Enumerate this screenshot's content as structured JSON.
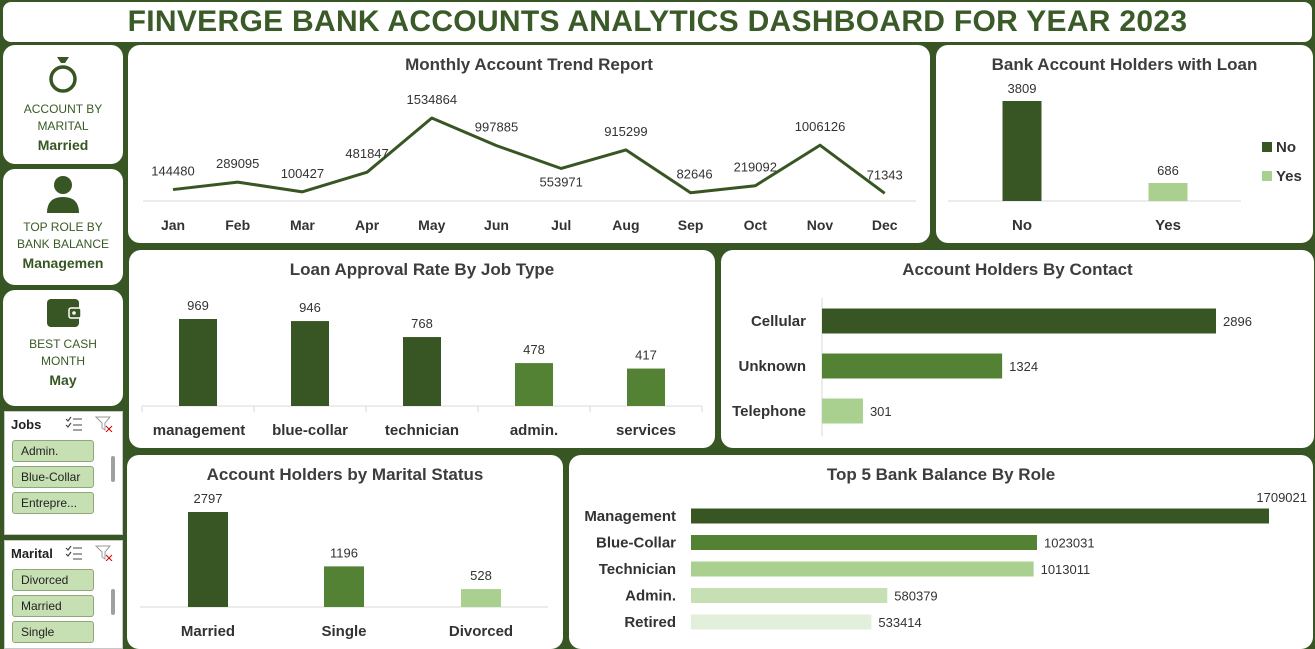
{
  "header": {
    "title": "FINVERGE BANK ACCOUNTS ANALYTICS DASHBOARD FOR YEAR 2023"
  },
  "kpis": [
    {
      "label": "ACCOUNT BY MARITAL",
      "value": "Married",
      "icon": "ring-icon"
    },
    {
      "label": "TOP ROLE BY BANK BALANCE",
      "value": "Managemen",
      "icon": "person-icon"
    },
    {
      "label": "BEST CASH MONTH",
      "value": "May",
      "icon": "wallet-icon"
    }
  ],
  "slicers": {
    "jobs": {
      "title": "Jobs",
      "items": [
        "Admin.",
        "Blue-Collar",
        "Entrepre..."
      ]
    },
    "marital": {
      "title": "Marital",
      "items": [
        "Divorced",
        "Married",
        "Single"
      ]
    }
  },
  "colors": {
    "dark": "#375623",
    "mid": "#548235",
    "light": "#a9d08e",
    "lighter": "#c6e0b4",
    "lightest": "#e2efda"
  },
  "chart_data": [
    {
      "id": "monthly",
      "type": "line",
      "title": "Monthly Account Trend Report",
      "categories": [
        "Jan",
        "Feb",
        "Mar",
        "Apr",
        "May",
        "Jun",
        "Jul",
        "Aug",
        "Sep",
        "Oct",
        "Nov",
        "Dec"
      ],
      "values": [
        144480,
        289095,
        100427,
        481847,
        1534864,
        997885,
        553971,
        915299,
        82646,
        219092,
        1006126,
        71343
      ],
      "labels": [
        "144480",
        "289095",
        "100427",
        "481847",
        "1534864",
        "997885",
        "553971",
        "915299",
        "82646",
        "219092",
        "1006126",
        "71343"
      ]
    },
    {
      "id": "loan",
      "type": "bar",
      "title": "Bank Account Holders with Loan",
      "categories": [
        "No",
        "Yes"
      ],
      "values": [
        3809,
        686
      ],
      "labels": [
        "3809",
        "686"
      ],
      "legend": [
        "No",
        "Yes"
      ],
      "legend_position": "right"
    },
    {
      "id": "jobs",
      "type": "bar",
      "title": "Loan Approval Rate By Job Type",
      "categories": [
        "management",
        "blue-collar",
        "technician",
        "admin.",
        "services"
      ],
      "values": [
        969,
        946,
        768,
        478,
        417
      ],
      "labels": [
        "969",
        "946",
        "768",
        "478",
        "417"
      ]
    },
    {
      "id": "contact",
      "type": "bar",
      "orientation": "horizontal",
      "title": "Account Holders By Contact",
      "categories": [
        "Cellular",
        "Unknown",
        "Telephone"
      ],
      "values": [
        2896,
        1324,
        301
      ],
      "labels": [
        "2896",
        "1324",
        "301"
      ]
    },
    {
      "id": "marital",
      "type": "bar",
      "title": "Account Holders by Marital Status",
      "categories": [
        "Married",
        "Single",
        "Divorced"
      ],
      "values": [
        2797,
        1196,
        528
      ],
      "labels": [
        "2797",
        "1196",
        "528"
      ]
    },
    {
      "id": "balance",
      "type": "bar",
      "orientation": "horizontal",
      "title": "Top 5 Bank Balance By Role",
      "categories": [
        "Management",
        "Blue-Collar",
        "Technician",
        "Admin.",
        "Retired"
      ],
      "values": [
        1709021,
        1023031,
        1013011,
        580379,
        533414
      ],
      "labels": [
        "1709021",
        "1023031",
        "1013011",
        "580379",
        "533414"
      ]
    }
  ]
}
